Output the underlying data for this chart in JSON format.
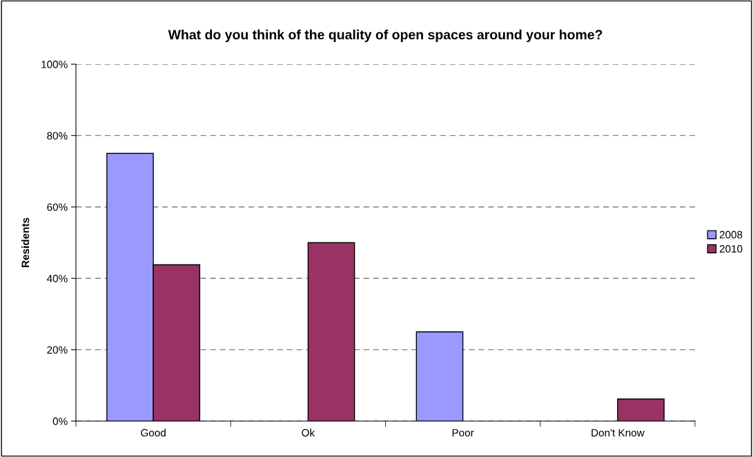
{
  "chart_data": {
    "type": "bar",
    "title": "What do you think of the quality of open spaces around your home?",
    "ylabel": "Residents",
    "categories": [
      "Good",
      "Ok",
      "Poor",
      "Don't Know"
    ],
    "series": [
      {
        "name": "2008",
        "color": "#9999ff",
        "values": [
          75,
          null,
          25,
          null
        ]
      },
      {
        "name": "2010",
        "color": "#993366",
        "values": [
          43.8,
          50,
          null,
          6.2
        ]
      }
    ],
    "ylim": [
      0,
      100
    ],
    "yticks": [
      {
        "value": 0,
        "label": "0%"
      },
      {
        "value": 20,
        "label": "20%"
      },
      {
        "value": 40,
        "label": "40%"
      },
      {
        "value": 60,
        "label": "60%"
      },
      {
        "value": 80,
        "label": "80%"
      },
      {
        "value": 100,
        "label": "100%"
      }
    ],
    "grid": "y",
    "legend": "right"
  }
}
